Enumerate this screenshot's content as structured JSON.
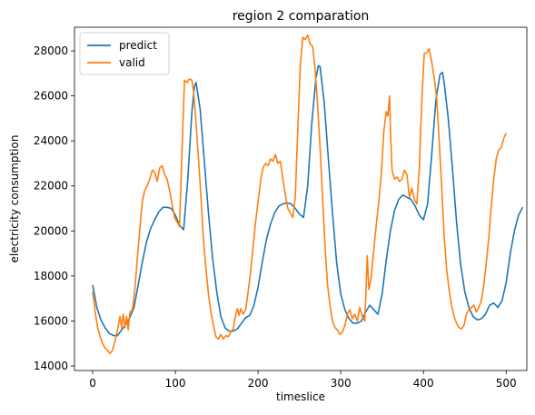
{
  "chart_data": {
    "type": "line",
    "title": "region 2 comparation",
    "xlabel": "timeslice",
    "ylabel": "electricity consumption",
    "xlim": [
      -22,
      525
    ],
    "ylim": [
      13800,
      29050
    ],
    "xticks": [
      0,
      100,
      200,
      300,
      400,
      500
    ],
    "yticks": [
      14000,
      16000,
      18000,
      20000,
      22000,
      24000,
      26000,
      28000
    ],
    "grid": false,
    "legend_position": "top-left",
    "series": [
      {
        "name": "predict",
        "color": "#1f77b4",
        "points": [
          [
            0,
            17600
          ],
          [
            5,
            16600
          ],
          [
            10,
            16050
          ],
          [
            15,
            15700
          ],
          [
            20,
            15450
          ],
          [
            25,
            15350
          ],
          [
            30,
            15350
          ],
          [
            35,
            15600
          ],
          [
            40,
            15850
          ],
          [
            45,
            16150
          ],
          [
            50,
            16600
          ],
          [
            55,
            17600
          ],
          [
            60,
            18600
          ],
          [
            65,
            19500
          ],
          [
            70,
            20100
          ],
          [
            75,
            20500
          ],
          [
            80,
            20850
          ],
          [
            85,
            21050
          ],
          [
            90,
            21050
          ],
          [
            95,
            21000
          ],
          [
            100,
            20700
          ],
          [
            105,
            20250
          ],
          [
            110,
            20050
          ],
          [
            115,
            22300
          ],
          [
            120,
            25300
          ],
          [
            123,
            26400
          ],
          [
            125,
            26600
          ],
          [
            130,
            25400
          ],
          [
            135,
            23100
          ],
          [
            140,
            20800
          ],
          [
            145,
            18800
          ],
          [
            150,
            17300
          ],
          [
            155,
            16200
          ],
          [
            160,
            15700
          ],
          [
            165,
            15550
          ],
          [
            170,
            15550
          ],
          [
            175,
            15650
          ],
          [
            180,
            15900
          ],
          [
            185,
            16150
          ],
          [
            190,
            16250
          ],
          [
            195,
            16700
          ],
          [
            200,
            17500
          ],
          [
            205,
            18600
          ],
          [
            210,
            19600
          ],
          [
            215,
            20300
          ],
          [
            220,
            20800
          ],
          [
            225,
            21100
          ],
          [
            230,
            21200
          ],
          [
            235,
            21250
          ],
          [
            240,
            21200
          ],
          [
            245,
            21000
          ],
          [
            250,
            20750
          ],
          [
            255,
            20600
          ],
          [
            260,
            22000
          ],
          [
            265,
            24800
          ],
          [
            270,
            26800
          ],
          [
            273,
            27350
          ],
          [
            275,
            27300
          ],
          [
            280,
            25700
          ],
          [
            285,
            23200
          ],
          [
            290,
            20800
          ],
          [
            295,
            18600
          ],
          [
            300,
            17200
          ],
          [
            305,
            16500
          ],
          [
            310,
            16100
          ],
          [
            315,
            15900
          ],
          [
            320,
            15900
          ],
          [
            325,
            16000
          ],
          [
            330,
            16400
          ],
          [
            335,
            16700
          ],
          [
            340,
            16500
          ],
          [
            345,
            16300
          ],
          [
            350,
            17200
          ],
          [
            355,
            18700
          ],
          [
            360,
            20000
          ],
          [
            365,
            20900
          ],
          [
            370,
            21400
          ],
          [
            375,
            21600
          ],
          [
            380,
            21500
          ],
          [
            385,
            21400
          ],
          [
            390,
            21100
          ],
          [
            395,
            20700
          ],
          [
            400,
            20500
          ],
          [
            405,
            21200
          ],
          [
            410,
            23400
          ],
          [
            415,
            25800
          ],
          [
            420,
            26950
          ],
          [
            423,
            27050
          ],
          [
            425,
            26600
          ],
          [
            430,
            25000
          ],
          [
            435,
            22800
          ],
          [
            440,
            20400
          ],
          [
            445,
            18500
          ],
          [
            450,
            17300
          ],
          [
            455,
            16600
          ],
          [
            460,
            16200
          ],
          [
            465,
            16050
          ],
          [
            470,
            16100
          ],
          [
            475,
            16300
          ],
          [
            480,
            16700
          ],
          [
            485,
            16800
          ],
          [
            490,
            16600
          ],
          [
            495,
            16900
          ],
          [
            500,
            17700
          ],
          [
            505,
            19000
          ],
          [
            510,
            20000
          ],
          [
            515,
            20700
          ],
          [
            520,
            21050
          ]
        ]
      },
      {
        "name": "valid",
        "color": "#ff7f0e",
        "points": [
          [
            0,
            17300
          ],
          [
            3,
            16400
          ],
          [
            6,
            15700
          ],
          [
            9,
            15300
          ],
          [
            12,
            15000
          ],
          [
            15,
            14800
          ],
          [
            18,
            14700
          ],
          [
            21,
            14550
          ],
          [
            24,
            14700
          ],
          [
            27,
            15100
          ],
          [
            30,
            15600
          ],
          [
            33,
            16200
          ],
          [
            35,
            15700
          ],
          [
            37,
            16300
          ],
          [
            39,
            15700
          ],
          [
            41,
            16200
          ],
          [
            43,
            15600
          ],
          [
            45,
            16400
          ],
          [
            48,
            16500
          ],
          [
            51,
            17400
          ],
          [
            54,
            18800
          ],
          [
            57,
            20100
          ],
          [
            60,
            21300
          ],
          [
            63,
            21800
          ],
          [
            66,
            22000
          ],
          [
            69,
            22300
          ],
          [
            72,
            22700
          ],
          [
            75,
            22600
          ],
          [
            78,
            22200
          ],
          [
            81,
            22800
          ],
          [
            84,
            22900
          ],
          [
            87,
            22500
          ],
          [
            90,
            22300
          ],
          [
            93,
            21800
          ],
          [
            96,
            21200
          ],
          [
            99,
            20600
          ],
          [
            102,
            20400
          ],
          [
            105,
            20200
          ],
          [
            108,
            23500
          ],
          [
            111,
            26700
          ],
          [
            114,
            26600
          ],
          [
            117,
            26750
          ],
          [
            120,
            26700
          ],
          [
            122,
            26200
          ],
          [
            125,
            24800
          ],
          [
            128,
            23200
          ],
          [
            131,
            21500
          ],
          [
            134,
            19600
          ],
          [
            137,
            18300
          ],
          [
            140,
            17200
          ],
          [
            143,
            16400
          ],
          [
            146,
            15800
          ],
          [
            149,
            15300
          ],
          [
            152,
            15200
          ],
          [
            155,
            15400
          ],
          [
            158,
            15200
          ],
          [
            161,
            15350
          ],
          [
            164,
            15300
          ],
          [
            167,
            15500
          ],
          [
            170,
            15650
          ],
          [
            172,
            16100
          ],
          [
            175,
            16550
          ],
          [
            177,
            16250
          ],
          [
            179,
            16550
          ],
          [
            182,
            16300
          ],
          [
            185,
            16500
          ],
          [
            188,
            17300
          ],
          [
            191,
            18200
          ],
          [
            194,
            19300
          ],
          [
            197,
            20400
          ],
          [
            200,
            21300
          ],
          [
            203,
            22200
          ],
          [
            206,
            22800
          ],
          [
            209,
            23000
          ],
          [
            212,
            22900
          ],
          [
            215,
            23200
          ],
          [
            218,
            23100
          ],
          [
            221,
            23400
          ],
          [
            224,
            23000
          ],
          [
            227,
            23100
          ],
          [
            230,
            22300
          ],
          [
            233,
            21600
          ],
          [
            236,
            21000
          ],
          [
            239,
            20800
          ],
          [
            242,
            20600
          ],
          [
            245,
            21500
          ],
          [
            248,
            24500
          ],
          [
            251,
            27300
          ],
          [
            254,
            28600
          ],
          [
            257,
            28500
          ],
          [
            260,
            28700
          ],
          [
            263,
            28300
          ],
          [
            266,
            28200
          ],
          [
            269,
            27200
          ],
          [
            272,
            25600
          ],
          [
            275,
            23700
          ],
          [
            278,
            21500
          ],
          [
            281,
            19300
          ],
          [
            284,
            17600
          ],
          [
            287,
            16700
          ],
          [
            290,
            16000
          ],
          [
            293,
            15700
          ],
          [
            296,
            15600
          ],
          [
            299,
            15400
          ],
          [
            302,
            15500
          ],
          [
            305,
            15800
          ],
          [
            308,
            16300
          ],
          [
            311,
            16500
          ],
          [
            314,
            16100
          ],
          [
            317,
            16300
          ],
          [
            320,
            16000
          ],
          [
            323,
            16600
          ],
          [
            326,
            16200
          ],
          [
            329,
            16000
          ],
          [
            331,
            17800
          ],
          [
            332,
            18900
          ],
          [
            334,
            17400
          ],
          [
            337,
            18000
          ],
          [
            340,
            19200
          ],
          [
            343,
            20300
          ],
          [
            346,
            21300
          ],
          [
            349,
            22500
          ],
          [
            352,
            24400
          ],
          [
            355,
            25300
          ],
          [
            357,
            25100
          ],
          [
            359,
            26000
          ],
          [
            360,
            24600
          ],
          [
            362,
            22700
          ],
          [
            365,
            22300
          ],
          [
            368,
            22400
          ],
          [
            371,
            22200
          ],
          [
            374,
            22300
          ],
          [
            377,
            22700
          ],
          [
            380,
            22500
          ],
          [
            383,
            21500
          ],
          [
            386,
            21900
          ],
          [
            389,
            21400
          ],
          [
            392,
            21200
          ],
          [
            395,
            22800
          ],
          [
            398,
            25800
          ],
          [
            401,
            27900
          ],
          [
            404,
            27900
          ],
          [
            407,
            28100
          ],
          [
            410,
            27500
          ],
          [
            413,
            26800
          ],
          [
            416,
            25900
          ],
          [
            419,
            24000
          ],
          [
            422,
            22000
          ],
          [
            425,
            19800
          ],
          [
            428,
            18300
          ],
          [
            431,
            17400
          ],
          [
            434,
            16700
          ],
          [
            437,
            16200
          ],
          [
            440,
            15900
          ],
          [
            443,
            15700
          ],
          [
            446,
            15650
          ],
          [
            449,
            15800
          ],
          [
            452,
            16300
          ],
          [
            455,
            16500
          ],
          [
            458,
            16600
          ],
          [
            461,
            16700
          ],
          [
            464,
            16400
          ],
          [
            467,
            16600
          ],
          [
            470,
            16900
          ],
          [
            473,
            17600
          ],
          [
            476,
            18600
          ],
          [
            479,
            19700
          ],
          [
            482,
            21100
          ],
          [
            485,
            22300
          ],
          [
            488,
            23200
          ],
          [
            491,
            23600
          ],
          [
            494,
            23700
          ],
          [
            497,
            24100
          ],
          [
            500,
            24350
          ]
        ]
      }
    ]
  }
}
